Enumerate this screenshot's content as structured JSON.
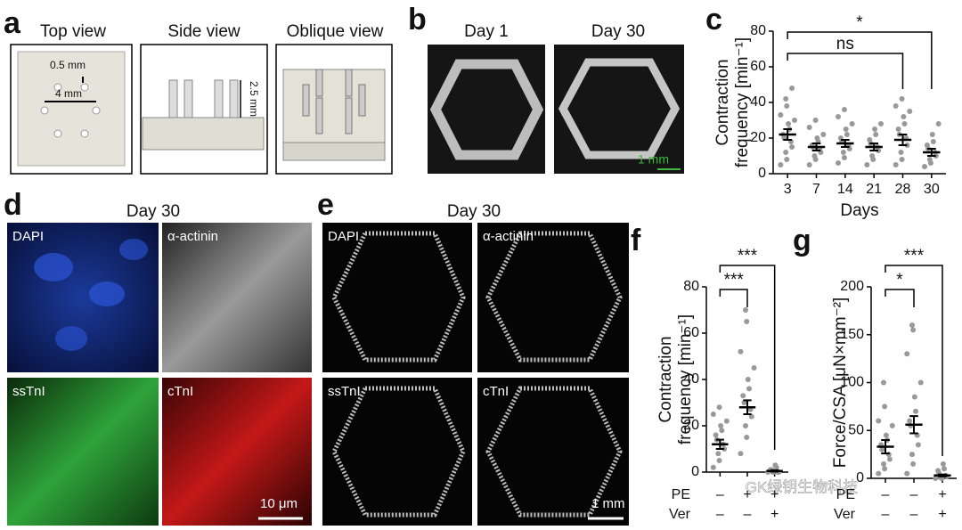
{
  "panel_labels": [
    "a",
    "b",
    "c",
    "d",
    "e",
    "f",
    "g"
  ],
  "panel_a": {
    "titles": [
      "Top view",
      "Side view",
      "Oblique view"
    ],
    "dimensions": [
      "0.5 mm",
      "4 mm",
      "2.5 mm"
    ]
  },
  "panel_b": {
    "titles": [
      "Day 1",
      "Day 30"
    ],
    "scale_bar": "1 mm"
  },
  "panel_d": {
    "title": "Day 30",
    "channels": [
      "DAPI",
      "α-actinin",
      "ssTnI",
      "cTnI"
    ],
    "scale_bar": "10 μm"
  },
  "panel_e": {
    "title": "Day 30",
    "channels": [
      "DAPI",
      "α-actinin",
      "ssTnI",
      "cTnI"
    ],
    "scale_bar": "1 mm"
  },
  "watermark": "GK绿钥生物科技",
  "chart_data": [
    {
      "type": "dotplot",
      "ylabel": [
        "Contraction",
        "frequency [min⁻¹]"
      ],
      "xlabel": "Days",
      "categories": [
        "3",
        "7",
        "14",
        "21",
        "28",
        "30"
      ],
      "means": [
        22,
        15,
        17,
        15,
        19,
        12
      ],
      "errors": [
        3,
        2,
        2,
        2,
        3,
        2
      ],
      "points": [
        [
          5,
          8,
          12,
          15,
          18,
          20,
          22,
          25,
          28,
          30,
          33,
          38,
          42,
          48
        ],
        [
          5,
          8,
          10,
          12,
          14,
          15,
          16,
          18,
          20,
          22,
          26,
          30
        ],
        [
          6,
          9,
          12,
          14,
          16,
          18,
          20,
          22,
          25,
          28,
          32,
          36
        ],
        [
          5,
          8,
          10,
          13,
          15,
          17,
          19,
          22,
          25,
          28
        ],
        [
          5,
          8,
          12,
          16,
          20,
          22,
          25,
          28,
          32,
          35,
          38,
          42
        ],
        [
          4,
          6,
          8,
          10,
          12,
          14,
          16,
          18,
          22,
          28
        ]
      ],
      "point_color": "#999999",
      "annotations": [
        "ns",
        "*"
      ],
      "ylim": [
        0,
        80
      ],
      "yticks": [
        0,
        20,
        40,
        60,
        80
      ]
    },
    {
      "type": "dotplot",
      "ylabel": [
        "Contraction",
        "frequency [min⁻¹]"
      ],
      "condition_rows": [
        {
          "name": "PE",
          "values": [
            "–",
            "+",
            "+"
          ]
        },
        {
          "name": "Ver",
          "values": [
            "–",
            "–",
            "+"
          ]
        }
      ],
      "means": [
        12,
        28,
        0.5
      ],
      "errors": [
        2,
        3,
        0.3
      ],
      "points": [
        [
          2,
          5,
          8,
          10,
          12,
          14,
          16,
          18,
          20,
          22,
          25,
          28
        ],
        [
          8,
          15,
          20,
          24,
          27,
          30,
          33,
          36,
          40,
          45,
          52,
          65,
          70
        ],
        [
          0,
          0,
          0,
          0,
          0,
          1,
          1,
          2,
          3
        ]
      ],
      "point_color": "#999999",
      "annotations": [
        "***",
        "***"
      ],
      "ylim": [
        0,
        80
      ],
      "yticks": [
        0,
        20,
        40,
        60,
        80
      ]
    },
    {
      "type": "dotplot",
      "ylabel": [
        "Force/CSA [μN×mm⁻²]"
      ],
      "condition_rows": [
        {
          "name": "PE",
          "values": [
            "–",
            "–",
            "+"
          ]
        },
        {
          "name": "Ver",
          "values": [
            "–",
            "–",
            "+"
          ]
        }
      ],
      "means": [
        33,
        56,
        3
      ],
      "errors": [
        7,
        9,
        1
      ],
      "points": [
        [
          5,
          10,
          15,
          20,
          25,
          30,
          35,
          40,
          45,
          55,
          60,
          75,
          100
        ],
        [
          5,
          15,
          25,
          35,
          45,
          55,
          60,
          70,
          85,
          100,
          130,
          155,
          160
        ],
        [
          0,
          0,
          1,
          2,
          3,
          5,
          8,
          10,
          15
        ]
      ],
      "point_color": "#999999",
      "annotations": [
        "*",
        "***"
      ],
      "ylim": [
        0,
        200
      ],
      "yticks": [
        0,
        50,
        100,
        150,
        200
      ]
    }
  ]
}
